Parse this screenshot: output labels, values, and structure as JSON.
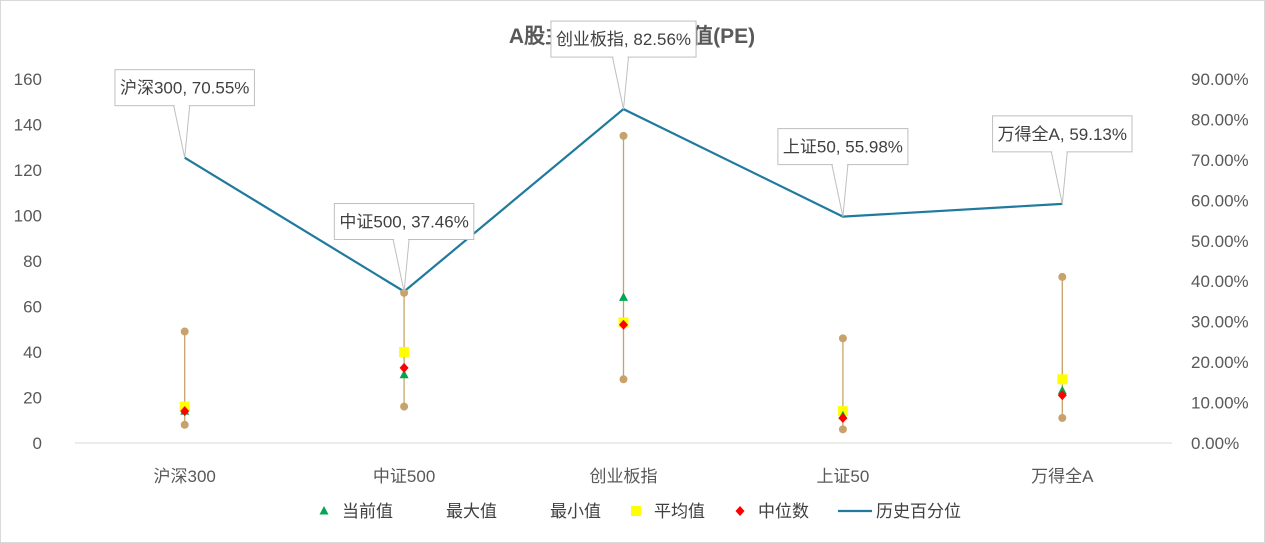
{
  "chart_data": {
    "type": "line",
    "title": "A股主要指数周度估值(PE)",
    "categories": [
      "沪深300",
      "中证500",
      "创业板指",
      "上证50",
      "万得全A"
    ],
    "y_left": {
      "min": 0,
      "max": 160,
      "step": 20,
      "ticks": [
        "0",
        "20",
        "40",
        "60",
        "80",
        "100",
        "120",
        "140",
        "160"
      ]
    },
    "y_right": {
      "min": 0,
      "max": 0.9,
      "step": 0.1,
      "ticks": [
        "0.00%",
        "10.00%",
        "20.00%",
        "30.00%",
        "40.00%",
        "50.00%",
        "60.00%",
        "70.00%",
        "80.00%",
        "90.00%"
      ]
    },
    "series": [
      {
        "name": "当前值",
        "marker": "triangle",
        "color": "#00a651",
        "axis": "left",
        "values": [
          14,
          30,
          64,
          12,
          23
        ]
      },
      {
        "name": "最大值",
        "marker": "circle",
        "color": "#c8a26a",
        "axis": "left",
        "values": [
          49,
          66,
          135,
          46,
          73
        ]
      },
      {
        "name": "最小值",
        "marker": "circle",
        "color": "#c8a26a",
        "axis": "left",
        "values": [
          8,
          16,
          28,
          6,
          11
        ]
      },
      {
        "name": "平均值",
        "marker": "square",
        "color": "#ffff00",
        "axis": "left",
        "values": [
          16,
          40,
          53,
          14,
          28
        ]
      },
      {
        "name": "中位数",
        "marker": "diamond",
        "color": "#ff0000",
        "axis": "left",
        "values": [
          14,
          33,
          52,
          11,
          21
        ]
      },
      {
        "name": "历史百分位",
        "marker": "line",
        "color": "#1f7a9e",
        "axis": "right",
        "values": [
          0.7055,
          0.3746,
          0.8256,
          0.5598,
          0.5913
        ]
      }
    ],
    "annotations": [
      "沪深300, 70.55%",
      "中证500, 37.46%",
      "创业板指, 82.56%",
      "上证50, 55.98%",
      "万得全A, 59.13%"
    ],
    "range_bar_color": "#c8a26a",
    "legend": [
      "当前值",
      "最大值",
      "最小值",
      "平均值",
      "中位数",
      "历史百分位"
    ],
    "legend_position": "bottom"
  }
}
